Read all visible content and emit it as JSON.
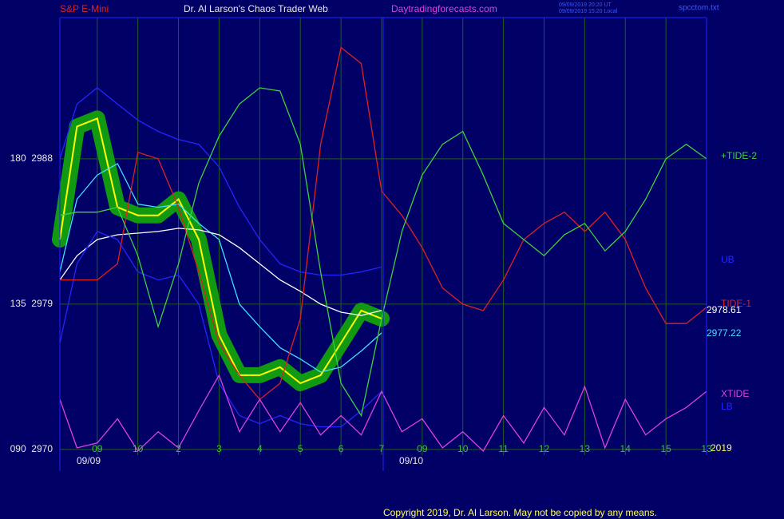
{
  "chart_data": {
    "type": "line",
    "symbol": "S&P E-Mini",
    "title": "Dr. Al Larson's Chaos Trader Web",
    "site": "Daytradingforecasts.com",
    "timestamps": [
      "09/09/2019 20:20 UT",
      "09/09/2019 15:20 Local"
    ],
    "file": "spcctom.txt",
    "copyright": "Copyright 2019, Dr. Al Larson. May not be copied by any means.",
    "year_label": "2019",
    "date_labels": [
      "09/09",
      "09/10"
    ],
    "grid": true,
    "xlim": [
      -0.92,
      15
    ],
    "ylim": [
      2969.65,
      2996.75
    ],
    "xticks": [
      {
        "value": 0,
        "label": "09"
      },
      {
        "value": 1,
        "label": "10"
      },
      2,
      3,
      4,
      5,
      6,
      7,
      {
        "value": 8,
        "label": "09"
      },
      {
        "value": 9,
        "label": "10"
      },
      {
        "value": 10,
        "label": "11"
      },
      {
        "value": 11,
        "label": "12"
      },
      {
        "value": 12,
        "label": "13"
      },
      {
        "value": 13,
        "label": "14"
      },
      {
        "value": 14,
        "label": "15"
      },
      {
        "value": 15,
        "label": "13"
      }
    ],
    "yticks": [
      {
        "value": 2970,
        "label": "090  2970"
      },
      {
        "value": 2979,
        "label": "135  2979"
      },
      {
        "value": 2988,
        "label": "180  2988"
      }
    ],
    "x": [
      -0.92,
      -0.5,
      0,
      0.5,
      1,
      1.5,
      2,
      2.5,
      3,
      3.5,
      4,
      4.5,
      5,
      5.5,
      6,
      6.5,
      7,
      7.5,
      8,
      8.5,
      9,
      9.5,
      10,
      10.5,
      11,
      11.5,
      12,
      12.5,
      13,
      13.5,
      14,
      14.5,
      15
    ],
    "series": [
      {
        "color": "#ffff00",
        "underlay": "#119911",
        "values": [
          2983.0,
          2990.0,
          2990.5,
          2985.0,
          2984.5,
          2984.5,
          2985.5,
          2983.0,
          2977.1,
          2974.6,
          2974.6,
          2975.1,
          2974.1,
          2974.6,
          2976.6,
          2978.6,
          2978.1,
          null,
          null,
          null,
          null,
          null,
          null,
          null,
          null,
          null,
          null,
          null,
          null,
          null,
          null,
          null,
          null
        ]
      },
      {
        "color": "#40e0ff",
        "values": [
          2981.0,
          2985.5,
          2987.0,
          2987.7,
          2985.2,
          2985.0,
          2985.2,
          2984.0,
          2983.0,
          2979.0,
          2977.6,
          2976.3,
          2975.6,
          2974.8,
          2975.1,
          2976.1,
          2977.22,
          null,
          null,
          null,
          null,
          null,
          null,
          null,
          null,
          null,
          null,
          null,
          null,
          null,
          null,
          null,
          null
        ],
        "value_labels": [
          null,
          null,
          null,
          null,
          null,
          null,
          null,
          null,
          null,
          null,
          null,
          null,
          null,
          null,
          null,
          null,
          "2977.22",
          null,
          null,
          null,
          null,
          null,
          null,
          null,
          null,
          null,
          null,
          null,
          null,
          null,
          null,
          null,
          null
        ]
      },
      {
        "color": "#ffffff",
        "values": [
          2980.5,
          2982.0,
          2983.0,
          2983.3,
          2983.4,
          2983.5,
          2983.7,
          2983.6,
          2983.3,
          2982.5,
          2981.5,
          2980.5,
          2979.8,
          2979.0,
          2978.5,
          2978.3,
          2978.61,
          null,
          null,
          null,
          null,
          null,
          null,
          null,
          null,
          null,
          null,
          null,
          null,
          null,
          null,
          null,
          null
        ],
        "value_labels": [
          null,
          null,
          null,
          null,
          null,
          null,
          null,
          null,
          null,
          null,
          null,
          null,
          null,
          null,
          null,
          null,
          "2978.61",
          null,
          null,
          null,
          null,
          null,
          null,
          null,
          null,
          null,
          null,
          null,
          null,
          null,
          null,
          null,
          null
        ]
      },
      {
        "name": "UB",
        "color": "#2424ff",
        "values": [
          2988.0,
          2991.4,
          2992.4,
          2991.4,
          2990.4,
          2989.7,
          2989.2,
          2988.9,
          2987.5,
          2985.0,
          2983.0,
          2981.5,
          2981.0,
          2980.8,
          2980.8,
          2981.0,
          2981.3,
          null,
          null,
          null,
          null,
          null,
          null,
          null,
          null,
          null,
          null,
          null,
          null,
          null,
          null,
          null,
          null
        ]
      },
      {
        "name": "LB",
        "color": "#2424ff",
        "values": [
          2976.6,
          2981.5,
          2983.5,
          2983.0,
          2981.0,
          2980.5,
          2980.8,
          2979.0,
          2974.1,
          2972.1,
          2971.6,
          2972.1,
          2971.6,
          2971.4,
          2971.4,
          2972.4,
          2973.6,
          null,
          null,
          null,
          null,
          null,
          null,
          null,
          null,
          null,
          null,
          null,
          null,
          null,
          null,
          null,
          null
        ]
      },
      {
        "name": "TIDE-1",
        "color": "#e02020",
        "values": [
          2980.5,
          2980.5,
          2980.5,
          2981.5,
          2988.4,
          2988.0,
          2985.0,
          2981.0,
          2976.6,
          2974.6,
          2973.1,
          2974.1,
          2978.1,
          2988.9,
          2994.9,
          2993.9,
          2986.0,
          2984.5,
          2982.5,
          2980.0,
          2979.0,
          2978.6,
          2980.5,
          2983.0,
          2984.0,
          2984.7,
          2983.5,
          2984.7,
          2983.0,
          2980.0,
          2977.8,
          2977.8,
          2978.8
        ]
      },
      {
        "name": "+TIDE-2",
        "color": "#40d040",
        "values": [
          2984.5,
          2984.7,
          2984.7,
          2985.0,
          2982.0,
          2977.6,
          2981.5,
          2986.5,
          2989.4,
          2991.4,
          2992.4,
          2992.2,
          2988.9,
          2981.0,
          2974.1,
          2972.1,
          2978.1,
          2983.5,
          2987.0,
          2988.9,
          2989.7,
          2987.0,
          2984.0,
          2983.0,
          2982.0,
          2983.3,
          2984.0,
          2982.3,
          2983.5,
          2985.5,
          2988.0,
          2988.9,
          2988.0
        ]
      },
      {
        "name": "XTIDE",
        "color": "#e040e0",
        "values": [
          2973.1,
          2970.1,
          2970.4,
          2971.9,
          2969.9,
          2971.1,
          2970.1,
          2972.4,
          2974.6,
          2971.1,
          2973.1,
          2971.1,
          2972.9,
          2970.9,
          2972.1,
          2970.9,
          2973.6,
          2971.1,
          2971.9,
          2970.1,
          2971.1,
          2969.9,
          2972.1,
          2970.4,
          2972.6,
          2970.9,
          2973.9,
          2970.1,
          2973.1,
          2970.9,
          2971.9,
          2972.6,
          2973.6
        ]
      }
    ]
  }
}
